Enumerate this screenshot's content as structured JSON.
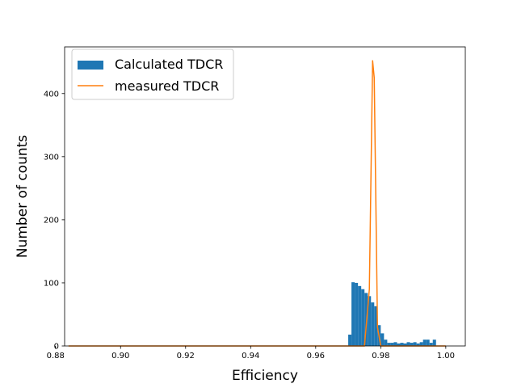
{
  "chart_data": {
    "type": "bar",
    "xlabel": "Efficiency",
    "ylabel": "Number of counts",
    "xlim": [
      0.8828,
      1.006
    ],
    "ylim": [
      0,
      474
    ],
    "xticks": [
      0.88,
      0.9,
      0.92,
      0.94,
      0.96,
      0.98,
      1.0
    ],
    "xtick_labels": [
      "0.88",
      "0.90",
      "0.92",
      "0.94",
      "0.96",
      "0.98",
      "1.00"
    ],
    "yticks": [
      0,
      100,
      200,
      300,
      400
    ],
    "ytick_labels": [
      "0",
      "100",
      "200",
      "300",
      "400"
    ],
    "grid": false,
    "legend_position": "top-left",
    "colors": {
      "hist": "#1f77b4",
      "line": "#ff7f0e"
    },
    "series": [
      {
        "name": "Calculated TDCR",
        "type": "histogram",
        "bin_width": 0.001,
        "bin_starts": [
          0.97,
          0.971,
          0.972,
          0.973,
          0.974,
          0.975,
          0.976,
          0.977,
          0.978,
          0.979,
          0.98,
          0.981,
          0.982,
          0.983,
          0.984,
          0.985,
          0.986,
          0.987,
          0.988,
          0.989,
          0.99,
          0.991,
          0.992,
          0.993,
          0.994,
          0.995,
          0.996
        ],
        "counts": [
          18,
          101,
          100,
          95,
          90,
          84,
          79,
          69,
          63,
          33,
          20,
          10,
          5,
          5,
          6,
          4,
          5,
          4,
          6,
          5,
          6,
          4,
          6,
          10,
          10,
          5,
          10
        ]
      },
      {
        "name": "measured TDCR",
        "type": "line",
        "x": [
          0.884,
          0.975,
          0.9765,
          0.9775,
          0.978,
          0.979,
          0.98,
          1.0
        ],
        "y": [
          0,
          0,
          90,
          452,
          425,
          30,
          0,
          0
        ]
      }
    ]
  }
}
